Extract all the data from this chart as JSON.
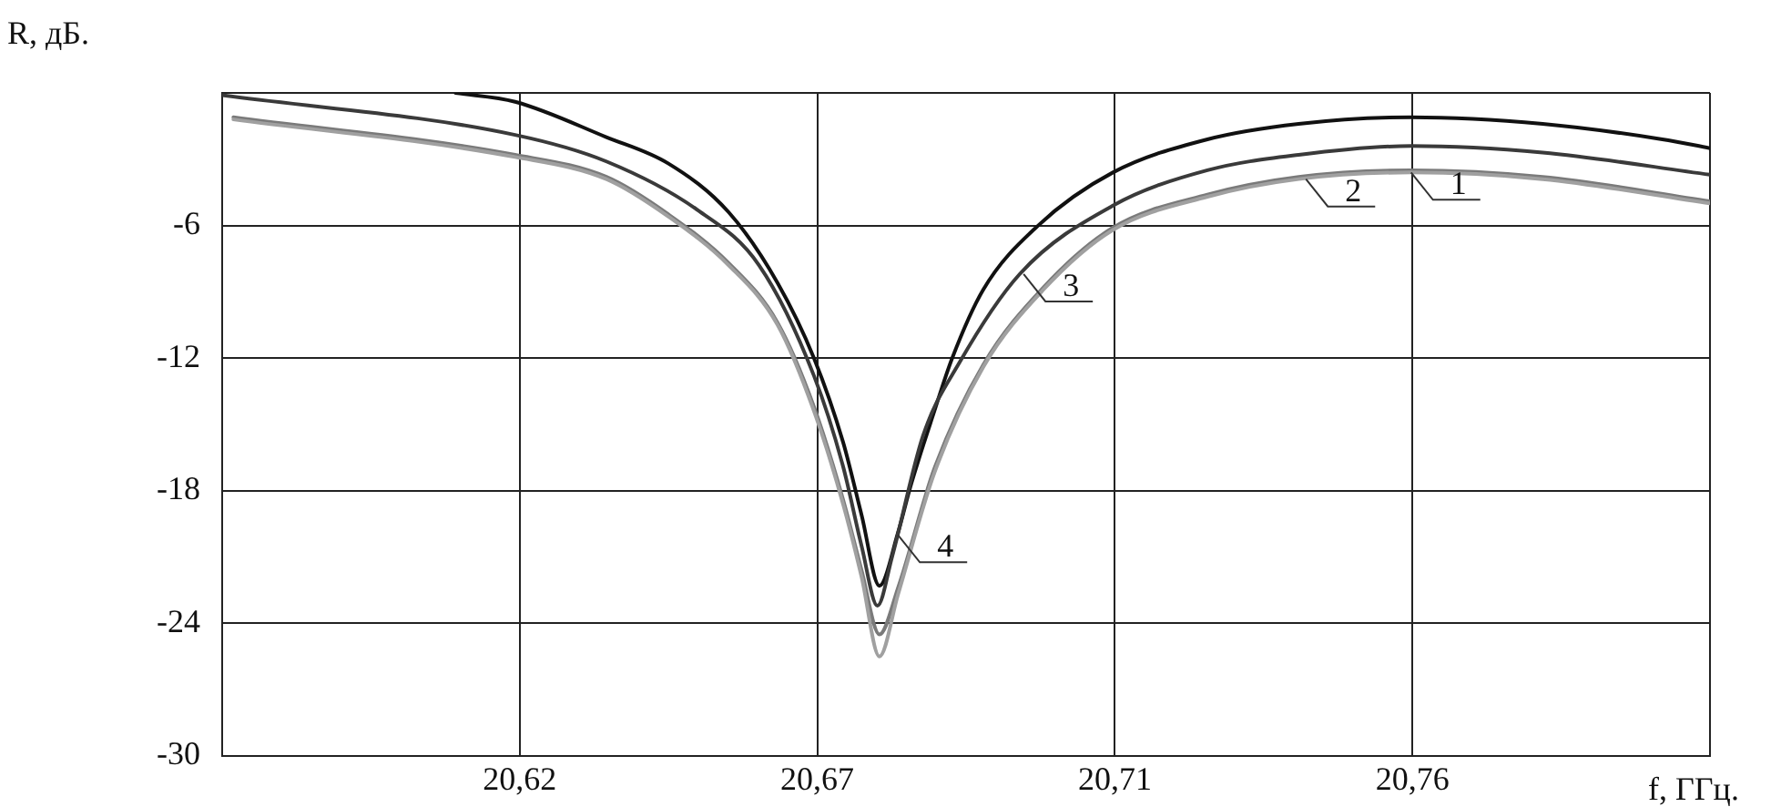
{
  "chart_data": {
    "type": "line",
    "xlabel": "f, ГГц.",
    "ylabel": "R, дБ.",
    "xlim": [
      20.5775,
      20.8025
    ],
    "ylim": [
      -30,
      0
    ],
    "xticks": [
      {
        "value": 20.5775,
        "label": null
      },
      {
        "value": 20.6225,
        "label": "20,62"
      },
      {
        "value": 20.6675,
        "label": "20,67"
      },
      {
        "value": 20.7125,
        "label": "20,71"
      },
      {
        "value": 20.7575,
        "label": "20,76"
      },
      {
        "value": 20.8025,
        "label": null
      }
    ],
    "yticks": [
      -30,
      -24,
      -18,
      -12,
      -6,
      {
        "value": 0,
        "label": null
      }
    ],
    "grid": true,
    "legend": false,
    "marker": "none",
    "line_style": "solid",
    "series": [
      {
        "color": "#a0a0a0",
        "x": [
          20.5792,
          20.6218,
          20.6356,
          20.645,
          20.6541,
          20.6615,
          20.667,
          20.6714,
          20.6742,
          20.6769,
          20.6797,
          20.6852,
          20.6926,
          20.7017,
          20.7122,
          20.7265,
          20.7403,
          20.7573,
          20.7772,
          20.8025
        ],
        "values": [
          -1.2,
          -2.9,
          -3.9,
          -5.6,
          -7.8,
          -10.5,
          -14.4,
          -18.6,
          -21.9,
          -25.5,
          -22.7,
          -17.2,
          -12.4,
          -8.9,
          -6.2,
          -4.7,
          -3.9,
          -3.6,
          -3.9,
          -5.0
        ]
      },
      {
        "color": "#7a7a7a",
        "x": [
          20.5792,
          20.6218,
          20.6356,
          20.645,
          20.6541,
          20.6615,
          20.667,
          20.6714,
          20.6742,
          20.6769,
          20.6797,
          20.6852,
          20.6926,
          20.7017,
          20.7122,
          20.7265,
          20.7403,
          20.7573,
          20.7772,
          20.8025
        ],
        "values": [
          -1.1,
          -2.8,
          -3.8,
          -5.5,
          -7.7,
          -10.4,
          -14.2,
          -18.4,
          -21.6,
          -24.5,
          -22.4,
          -17.0,
          -12.3,
          -8.8,
          -6.1,
          -4.6,
          -3.8,
          -3.5,
          -3.8,
          -4.9
        ]
      },
      {
        "color": "#3a3a3a",
        "x": [
          20.5775,
          20.6218,
          20.6356,
          20.6494,
          20.6587,
          20.667,
          20.6714,
          20.6742,
          20.6766,
          20.6788,
          20.6835,
          20.689,
          20.6981,
          20.7122,
          20.7265,
          20.7403,
          20.7573,
          20.7772,
          20.8025
        ],
        "values": [
          -0.1,
          -1.9,
          -3.1,
          -5.3,
          -7.8,
          -12.8,
          -16.9,
          -20.5,
          -23.2,
          -21.0,
          -15.5,
          -12.2,
          -8.2,
          -5.1,
          -3.5,
          -2.8,
          -2.4,
          -2.7,
          -3.7
        ]
      },
      {
        "color": "#111111",
        "x": [
          20.6128,
          20.6218,
          20.6356,
          20.645,
          20.6541,
          20.6615,
          20.667,
          20.6714,
          20.6742,
          20.6769,
          20.6797,
          20.6816,
          20.6852,
          20.6879,
          20.6926,
          20.7009,
          20.7122,
          20.7265,
          20.7403,
          20.7573,
          20.7772,
          20.7953,
          20.8025
        ],
        "values": [
          0,
          -0.4,
          -2.0,
          -3.2,
          -5.4,
          -8.6,
          -12.0,
          -15.8,
          -19.1,
          -22.3,
          -19.9,
          -17.8,
          -14.4,
          -12.0,
          -8.9,
          -6.0,
          -3.6,
          -2.1,
          -1.4,
          -1.1,
          -1.4,
          -2.1,
          -2.5
        ]
      }
    ],
    "annotations": [
      {
        "text": "1",
        "x": 20.7573,
        "y": -3.6
      },
      {
        "text": "2",
        "x": 20.7414,
        "y": -3.9
      },
      {
        "text": "3",
        "x": 20.6987,
        "y": -8.2
      },
      {
        "text": "4",
        "x": 20.6797,
        "y": -20.0
      }
    ]
  }
}
